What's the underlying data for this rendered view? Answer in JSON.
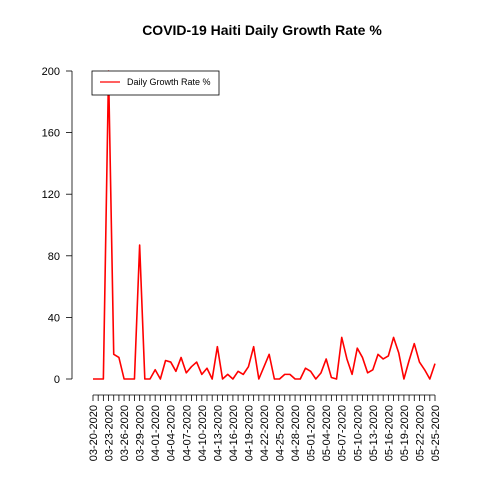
{
  "chart_data": {
    "type": "line",
    "title": "COVID-19 Haiti Daily Growth Rate %",
    "xlabel": "",
    "ylabel": "",
    "ylim": [
      0,
      200
    ],
    "yticks": [
      0,
      40,
      80,
      120,
      160,
      200
    ],
    "grid": false,
    "legend_position": "top-left",
    "series": [
      {
        "name": "Daily Growth Rate %",
        "color": "#ff0000",
        "x": [
          "03-20-2020",
          "03-21-2020",
          "03-22-2020",
          "03-23-2020",
          "03-24-2020",
          "03-25-2020",
          "03-26-2020",
          "03-27-2020",
          "03-28-2020",
          "03-29-2020",
          "03-30-2020",
          "03-31-2020",
          "04-01-2020",
          "04-02-2020",
          "04-03-2020",
          "04-04-2020",
          "04-05-2020",
          "04-06-2020",
          "04-07-2020",
          "04-08-2020",
          "04-09-2020",
          "04-10-2020",
          "04-11-2020",
          "04-12-2020",
          "04-13-2020",
          "04-14-2020",
          "04-15-2020",
          "04-16-2020",
          "04-17-2020",
          "04-18-2020",
          "04-19-2020",
          "04-20-2020",
          "04-21-2020",
          "04-22-2020",
          "04-23-2020",
          "04-24-2020",
          "04-25-2020",
          "04-26-2020",
          "04-27-2020",
          "04-28-2020",
          "04-29-2020",
          "04-30-2020",
          "05-01-2020",
          "05-02-2020",
          "05-03-2020",
          "05-04-2020",
          "05-05-2020",
          "05-06-2020",
          "05-07-2020",
          "05-08-2020",
          "05-09-2020",
          "05-10-2020",
          "05-11-2020",
          "05-12-2020",
          "05-13-2020",
          "05-14-2020",
          "05-15-2020",
          "05-16-2020",
          "05-17-2020",
          "05-18-2020",
          "05-19-2020",
          "05-20-2020",
          "05-21-2020",
          "05-22-2020",
          "05-23-2020",
          "05-24-2020",
          "05-25-2020"
        ],
        "y": [
          0,
          0,
          0,
          200,
          16,
          14,
          0,
          0,
          0,
          87,
          0,
          0,
          6,
          0,
          12,
          11,
          5,
          14,
          4,
          8,
          11,
          3,
          7,
          0,
          21,
          0,
          3,
          0,
          5,
          3,
          8,
          21,
          0,
          8,
          16,
          0,
          0,
          3,
          3,
          0,
          0,
          7,
          5,
          0,
          4,
          13,
          1,
          0,
          27,
          13,
          3,
          20,
          14,
          4,
          6,
          16,
          13,
          15,
          27,
          17,
          0,
          12,
          23,
          11,
          6,
          0,
          10
        ]
      }
    ],
    "x_tick_labels": [
      "03-20-2020",
      "03-23-2020",
      "03-26-2020",
      "03-29-2020",
      "04-01-2020",
      "04-04-2020",
      "04-07-2020",
      "04-10-2020",
      "04-13-2020",
      "04-16-2020",
      "04-19-2020",
      "04-22-2020",
      "04-25-2020",
      "04-28-2020",
      "05-01-2020",
      "05-04-2020",
      "05-07-2020",
      "05-10-2020",
      "05-13-2020",
      "05-16-2020",
      "05-19-2020",
      "05-22-2020",
      "05-25-2020"
    ]
  }
}
